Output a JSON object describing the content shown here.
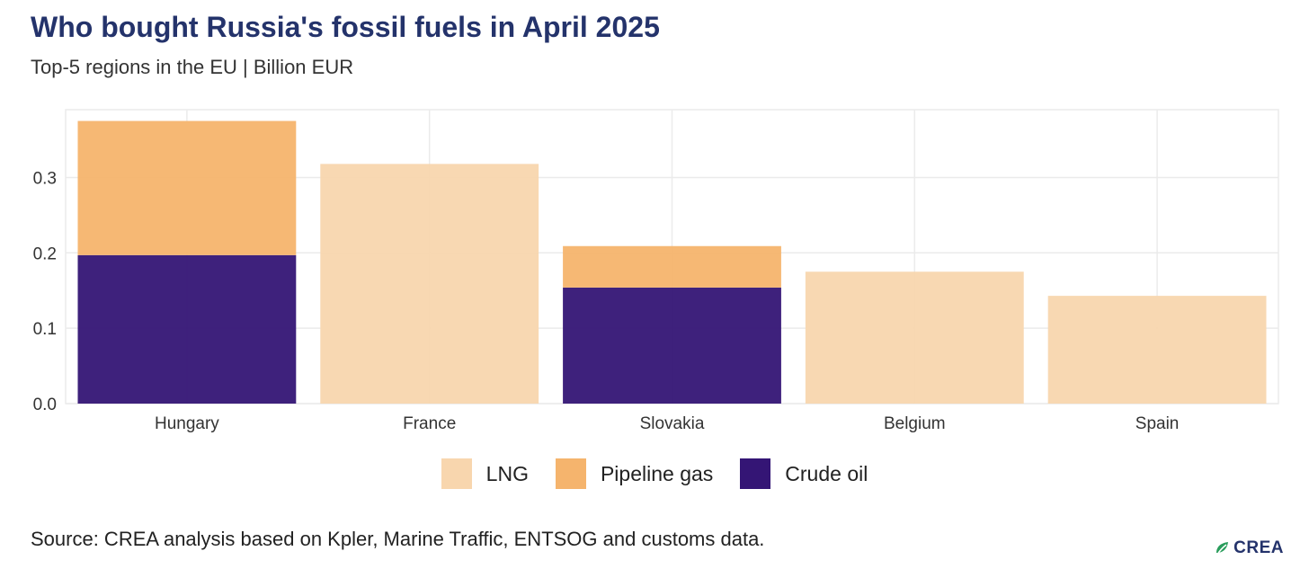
{
  "chart_data": {
    "type": "bar",
    "stacked": true,
    "title": "Who bought Russia's fossil fuels in April 2025",
    "subtitle": "Top-5 regions in the EU | Billion EUR",
    "xlabel": "",
    "ylabel": "",
    "categories": [
      "Hungary",
      "France",
      "Slovakia",
      "Belgium",
      "Spain"
    ],
    "series": [
      {
        "name": "Crude oil",
        "color": "#341575",
        "values": [
          0.197,
          0,
          0.154,
          0,
          0
        ]
      },
      {
        "name": "Pipeline gas",
        "color": "#f5b46d",
        "values": [
          0.178,
          0,
          0.055,
          0,
          0
        ]
      },
      {
        "name": "LNG",
        "color": "#f8d6ae",
        "values": [
          0,
          0.318,
          0,
          0.175,
          0.143
        ]
      }
    ],
    "ylim": [
      0,
      0.39
    ],
    "yticks": [
      "0.0",
      "0.1",
      "0.2",
      "0.3"
    ],
    "grid": true,
    "legend_position": "bottom"
  },
  "legend": [
    {
      "label": "LNG",
      "color": "#f8d6ae"
    },
    {
      "label": "Pipeline gas",
      "color": "#f5b46d"
    },
    {
      "label": "Crude oil",
      "color": "#341575"
    }
  ],
  "source": "Source: CREA analysis based on Kpler, Marine Traffic, ENTSOG and customs data.",
  "logo": {
    "text": "CREA",
    "icon": "crea-leaf-icon",
    "icon_colors": [
      "#2a9d5c",
      "#24336b"
    ]
  }
}
